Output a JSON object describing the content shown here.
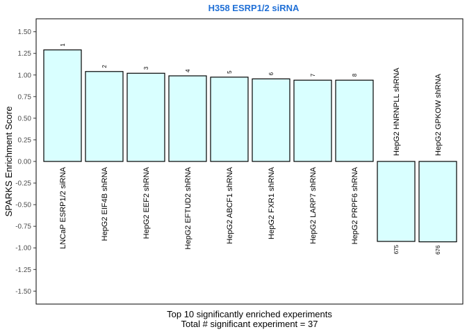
{
  "chart_data": {
    "type": "bar",
    "title": "H358 ESRP1/2 siRNA",
    "ylabel": "SPARKS Enrichment Score",
    "xlabel_lines": [
      "Top 10 significantly enriched experiments",
      "Total # significant experiment = 37"
    ],
    "ylim": [
      -1.65,
      1.65
    ],
    "yticks": [
      -1.5,
      -1.25,
      -1.0,
      -0.75,
      -0.5,
      -0.25,
      0.0,
      0.25,
      0.5,
      0.75,
      1.0,
      1.25,
      1.5
    ],
    "ytick_labels": [
      "-1.50",
      "-1.25",
      "-1.00",
      "-0.75",
      "-0.50",
      "-0.25",
      "0.00",
      "0.25",
      "0.50",
      "0.75",
      "1.00",
      "1.25",
      "1.50"
    ],
    "categories": [
      "LNCaP ESRP1/2 siRNA",
      "HepG2 EIF4B shRNA",
      "HepG2 EEF2 shRNA",
      "HepG2 EFTUD2 shRNA",
      "HepG2 ABCF1 shRNA",
      "HepG2 FXR1 shRNA",
      "HepG2 LARP7 shRNA",
      "HepG2 PRPF6 shRNA",
      "HepG2 HNRNPLL shRNA",
      "HepG2 GPKOW shRNA"
    ],
    "values": [
      1.29,
      1.04,
      1.02,
      0.99,
      0.975,
      0.955,
      0.94,
      0.94,
      -0.925,
      -0.93
    ],
    "ranks": [
      "1",
      "2",
      "3",
      "4",
      "5",
      "6",
      "7",
      "8",
      "675",
      "676"
    ],
    "highlight_index": 0,
    "colors": {
      "bar_fill": "#D9FFFF",
      "bar_stroke": "#000000",
      "title": "#1F6FD6",
      "highlight_label": "#1F6FD6",
      "label": "#000000"
    }
  }
}
